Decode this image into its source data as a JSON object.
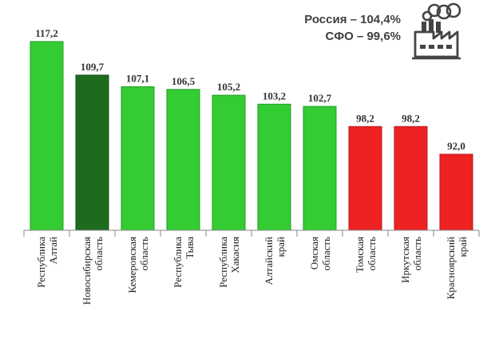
{
  "summary": {
    "russia": "Россия – 104,4%",
    "sfo": "СФО – 99,6%"
  },
  "icon": "factory-icon",
  "chart_data": {
    "type": "bar",
    "categories": [
      [
        "Республика",
        "Алтай"
      ],
      [
        "Новосибирская",
        "область"
      ],
      [
        "Кемеровская",
        "область"
      ],
      [
        "Республика",
        "Тыва"
      ],
      [
        "Республика",
        "Хакасия"
      ],
      [
        "Алтайский",
        "край"
      ],
      [
        "Омская",
        "область"
      ],
      [
        "Томская",
        "область"
      ],
      [
        "Иркутская",
        "область"
      ],
      [
        "Красноярский",
        "край"
      ]
    ],
    "values": [
      117.2,
      109.7,
      107.1,
      106.5,
      105.2,
      103.2,
      102.7,
      98.2,
      98.2,
      92.0
    ],
    "value_labels": [
      "117,2",
      "109,7",
      "107,1",
      "106,5",
      "105,2",
      "103,2",
      "102,7",
      "98,2",
      "98,2",
      "92,0"
    ],
    "bar_colors": [
      "#33cc33",
      "#1e6b1e",
      "#33cc33",
      "#33cc33",
      "#33cc33",
      "#33cc33",
      "#33cc33",
      "#ee2222",
      "#ee2222",
      "#ee2222"
    ],
    "ylim": [
      75,
      117.2
    ],
    "grid": false,
    "legend": "none",
    "title": "",
    "xlabel": "",
    "ylabel": ""
  }
}
